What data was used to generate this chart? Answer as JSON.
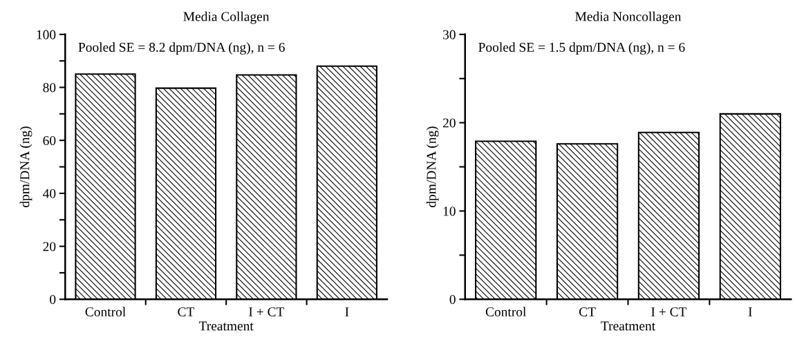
{
  "chart_data": [
    {
      "type": "bar",
      "title": "Media Collagen",
      "xlabel": "Treatment",
      "ylabel": "dpm/DNA (ng)",
      "annotations": [
        "Pooled SE = 8.2 dpm/DNA (ng), n = 6"
      ],
      "categories": [
        "Control",
        "CT",
        "I + CT",
        "I"
      ],
      "values": [
        85,
        79.7,
        84.7,
        88
      ],
      "color": "#000000",
      "ylim": [
        0,
        100
      ],
      "yticks": [
        0,
        {
          "value": 10,
          "label": null
        },
        20,
        {
          "value": 30,
          "label": null
        },
        40,
        {
          "value": 50,
          "label": null
        },
        60,
        {
          "value": 70,
          "label": null
        },
        80,
        {
          "value": 90,
          "label": null
        },
        100
      ],
      "grid": false
    },
    {
      "type": "bar",
      "title": "Media Noncollagen",
      "xlabel": "Treatment",
      "ylabel": "dpm/DNA (ng)",
      "annotations": [
        "Pooled SE = 1.5 dpm/DNA (ng), n = 6"
      ],
      "categories": [
        "Control",
        "CT",
        "I + CT",
        "I"
      ],
      "values": [
        17.9,
        17.6,
        18.9,
        21
      ],
      "color": "#000000",
      "ylim": [
        0,
        30
      ],
      "yticks": [
        0,
        {
          "value": 5,
          "label": null
        },
        10,
        {
          "value": 15,
          "label": null
        },
        20,
        {
          "value": 25,
          "label": null
        },
        30
      ],
      "grid": false
    }
  ]
}
